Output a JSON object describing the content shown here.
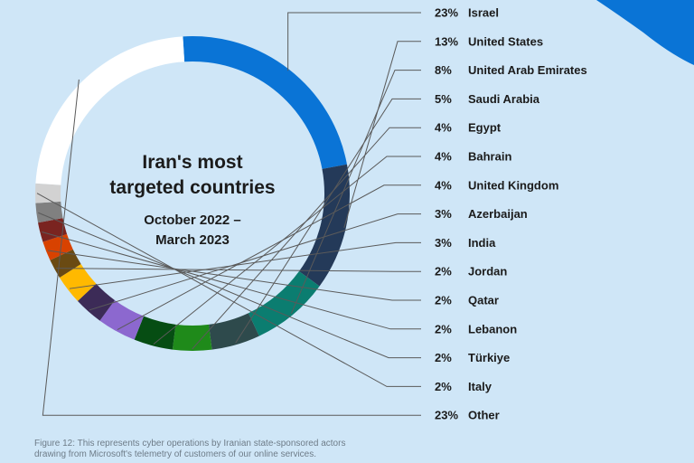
{
  "chart_data": {
    "type": "pie",
    "title": "Iran's most targeted countries",
    "subtitle": "October 2022 – March 2023",
    "categories": [
      "Israel",
      "United States",
      "United Arab Emirates",
      "Saudi Arabia",
      "Egypt",
      "Bahrain",
      "United Kingdom",
      "Azerbaijan",
      "India",
      "Jordan",
      "Qatar",
      "Lebanon",
      "Türkiye",
      "Italy",
      "Other"
    ],
    "values": [
      23,
      13,
      8,
      5,
      4,
      4,
      4,
      3,
      3,
      2,
      2,
      2,
      2,
      2,
      23
    ],
    "value_labels": [
      "23%",
      "13%",
      "8%",
      "5%",
      "4%",
      "4%",
      "4%",
      "3%",
      "3%",
      "2%",
      "2%",
      "2%",
      "2%",
      "2%",
      "23%"
    ],
    "colors": [
      "#0a74d6",
      "#243a59",
      "#0b7d70",
      "#2e4a4c",
      "#1f8a1a",
      "#064d13",
      "#8c68cf",
      "#3c2b57",
      "#ffb900",
      "#6a4a12",
      "#d84200",
      "#7a2420",
      "#808080",
      "#d2d2d2",
      "#ffffff"
    ],
    "legend_position": "right"
  },
  "center_title_lines": [
    "Iran's most",
    "targeted countries"
  ],
  "center_sub_lines": [
    "October 2022 –",
    "March 2023"
  ],
  "caption_lines": [
    "Figure 12: This represents cyber operations by Iranian state-sponsored actors",
    "drawing from Microsoft's telemetry of customers of our online services."
  ],
  "colors": {
    "background": "#cfe6f7",
    "leader_line": "#5a5a5a",
    "corner_accent": "#0a74d6"
  }
}
